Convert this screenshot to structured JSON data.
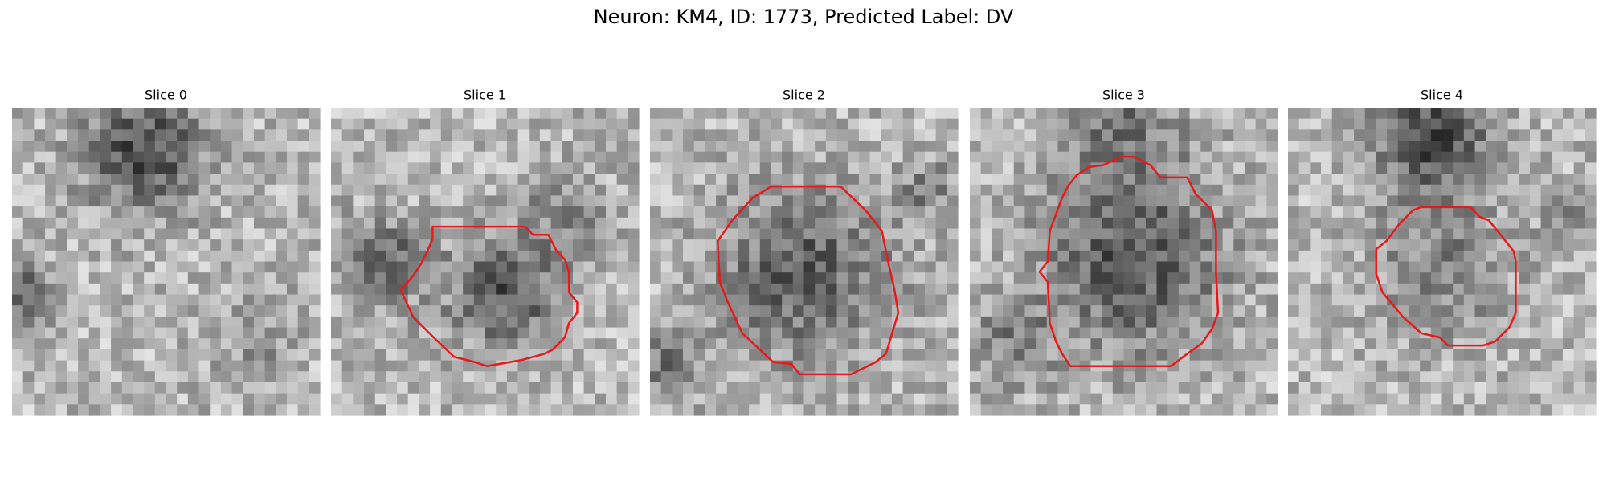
{
  "title": "Neuron: KM4, ID: 1773, Predicted Label: DV",
  "panels": [
    {
      "title": "Slice 0"
    },
    {
      "title": "Slice 1"
    },
    {
      "title": "Slice 2"
    },
    {
      "title": "Slice 3"
    },
    {
      "title": "Slice 4"
    }
  ]
}
